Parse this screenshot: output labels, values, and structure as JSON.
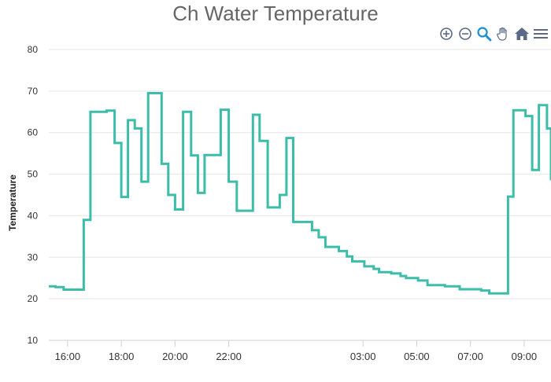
{
  "chart_data": {
    "type": "line",
    "step": true,
    "title": "Ch Water Temperature",
    "ylabel": "Temperature",
    "xlabel": "",
    "ylim": [
      10,
      80
    ],
    "yticks": [
      10,
      20,
      30,
      40,
      50,
      60,
      70,
      80
    ],
    "xticks": [
      {
        "label": "16:00",
        "h": 16
      },
      {
        "label": "18:00",
        "h": 18
      },
      {
        "label": "20:00",
        "h": 20
      },
      {
        "label": "22:00",
        "h": 22
      },
      {
        "label": "03:00",
        "h": 27
      },
      {
        "label": "05:00",
        "h": 29
      },
      {
        "label": "07:00",
        "h": 31
      },
      {
        "label": "09:00",
        "h": 33
      }
    ],
    "xlim_hours": [
      15.3,
      34.0
    ],
    "grid": true,
    "color": "#3cbda9",
    "series": [
      {
        "points": [
          [
            15.3,
            23
          ],
          [
            15.55,
            22.8
          ],
          [
            15.85,
            22.2
          ],
          [
            16.35,
            22.2
          ],
          [
            16.6,
            39
          ],
          [
            16.85,
            65
          ],
          [
            17.45,
            65.3
          ],
          [
            17.75,
            57.5
          ],
          [
            18.0,
            44.5
          ],
          [
            18.25,
            63
          ],
          [
            18.5,
            61
          ],
          [
            18.75,
            48.2
          ],
          [
            19.0,
            69.5
          ],
          [
            19.5,
            52.5
          ],
          [
            19.75,
            45
          ],
          [
            20.0,
            41.5
          ],
          [
            20.3,
            65
          ],
          [
            20.6,
            54.5
          ],
          [
            20.85,
            45.5
          ],
          [
            21.1,
            54.6
          ],
          [
            21.5,
            54.6
          ],
          [
            21.7,
            65.5
          ],
          [
            22.0,
            48.2
          ],
          [
            22.3,
            41.2
          ],
          [
            22.7,
            41.2
          ],
          [
            22.9,
            64.3
          ],
          [
            23.15,
            58
          ],
          [
            23.45,
            42
          ],
          [
            23.9,
            45
          ],
          [
            24.15,
            58.7
          ],
          [
            24.4,
            38.5
          ],
          [
            24.85,
            38.5
          ],
          [
            25.1,
            36.5
          ],
          [
            25.35,
            34.8
          ],
          [
            25.6,
            32.5
          ],
          [
            26.1,
            31.5
          ],
          [
            26.4,
            30.2
          ],
          [
            26.6,
            29
          ],
          [
            27.05,
            27.8
          ],
          [
            27.4,
            27.2
          ],
          [
            27.6,
            26.4
          ],
          [
            28.05,
            26.1
          ],
          [
            28.4,
            25.5
          ],
          [
            28.6,
            25
          ],
          [
            29.05,
            24.4
          ],
          [
            29.4,
            23.3
          ],
          [
            30.05,
            23
          ],
          [
            30.6,
            22.3
          ],
          [
            31.4,
            22
          ],
          [
            31.7,
            21.3
          ],
          [
            32.4,
            21.3
          ],
          [
            32.4,
            44.6
          ],
          [
            32.6,
            65.4
          ],
          [
            33.05,
            64
          ],
          [
            33.3,
            51
          ],
          [
            33.55,
            66.6
          ],
          [
            33.85,
            61
          ],
          [
            34.0,
            48.5
          ]
        ],
        "end": 34.0
      }
    ]
  }
}
